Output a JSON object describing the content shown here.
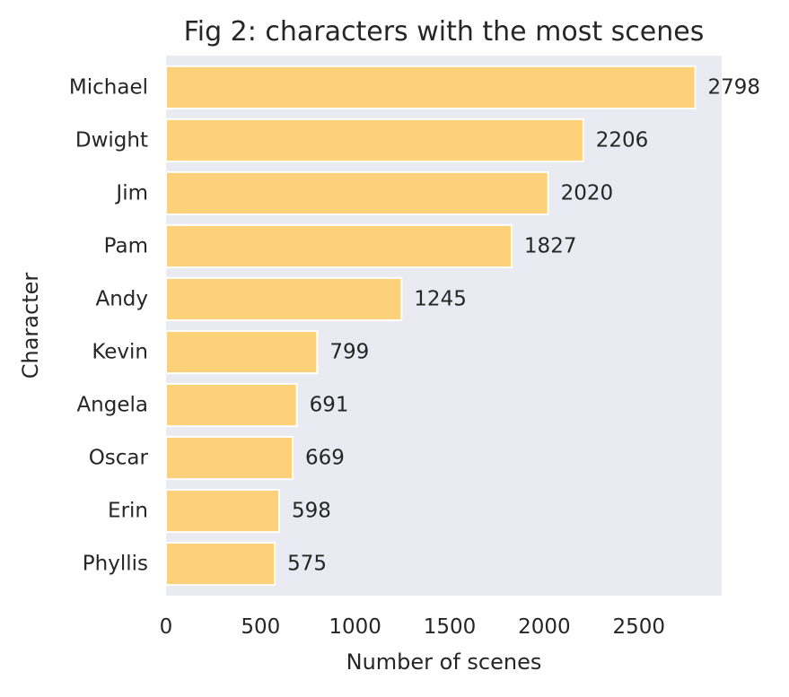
{
  "chart_data": {
    "type": "bar",
    "orientation": "horizontal",
    "title": "Fig 2: characters with the most scenes",
    "xlabel": "Number of scenes",
    "ylabel": "Character",
    "categories": [
      "Michael",
      "Dwight",
      "Jim",
      "Pam",
      "Andy",
      "Kevin",
      "Angela",
      "Oscar",
      "Erin",
      "Phyllis"
    ],
    "values": [
      2798,
      2206,
      2020,
      1827,
      1245,
      799,
      691,
      669,
      598,
      575
    ],
    "data_labels": [
      "2798",
      "2206",
      "2020",
      "1827",
      "1245",
      "799",
      "691",
      "669",
      "598",
      "575"
    ],
    "xlim": [
      0,
      2938
    ],
    "xticks": [
      0,
      500,
      1000,
      1500,
      2000,
      2500
    ],
    "xtick_labels": [
      "0",
      "500",
      "1000",
      "1500",
      "2000",
      "2500"
    ],
    "grid": false,
    "legend": "none",
    "colors": {
      "bar": "#fdd17a",
      "bar_edge": "#ffffff",
      "plot_background": "#eaeaf2",
      "text": "#262626"
    }
  }
}
